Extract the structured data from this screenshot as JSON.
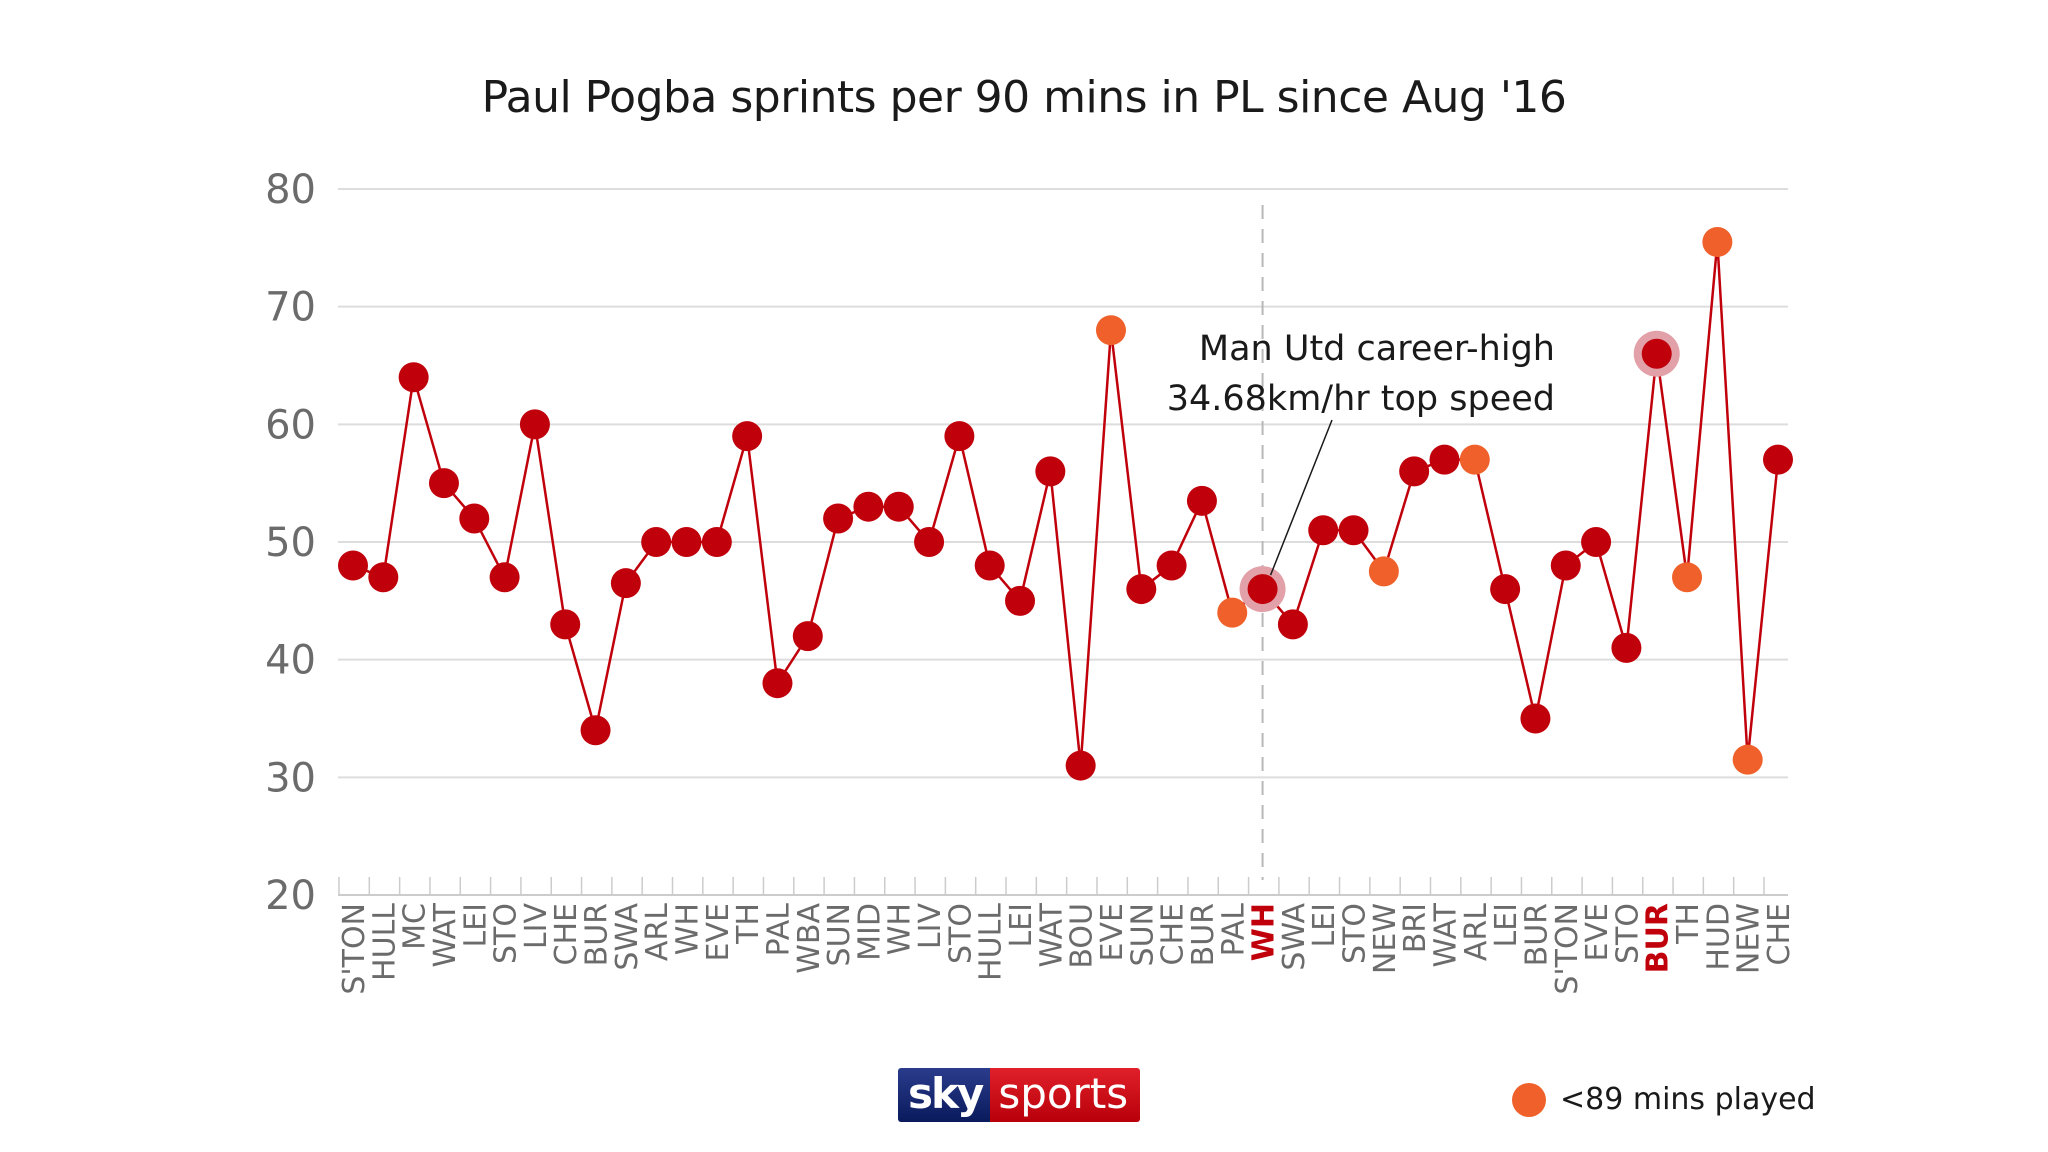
{
  "title": "Paul Pogba sprints per 90 mins in PL since Aug '16",
  "annotation": {
    "line1": "Man Utd career-high",
    "line2": "34.68km/hr top speed"
  },
  "legend": {
    "label": "<89 mins played"
  },
  "logo": {
    "sky": "sky",
    "sports": "sports"
  },
  "colors": {
    "full_match": "#c0000a",
    "partial_match": "#f0602a",
    "line": "#c0000a",
    "highlight_halo": "#e2a0a8",
    "grid": "#dddddd",
    "axis_text": "#6b6b6b"
  },
  "chart_data": {
    "type": "line",
    "title": "Paul Pogba sprints per 90 mins in PL since Aug '16",
    "xlabel": "",
    "ylabel": "",
    "ylim": [
      20,
      80
    ],
    "yticks": [
      20,
      30,
      40,
      50,
      60,
      70,
      80
    ],
    "grid": true,
    "legend_position": "bottom-right",
    "categories": [
      "S'TON",
      "HULL",
      "MC",
      "WAT",
      "LEI",
      "STO",
      "LIV",
      "CHE",
      "BUR",
      "SWA",
      "ARL",
      "WH",
      "EVE",
      "TH",
      "PAL",
      "WBA",
      "SUN",
      "MID",
      "WH",
      "LIV",
      "STO",
      "HULL",
      "LEI",
      "WAT",
      "BOU",
      "EVE",
      "SUN",
      "CHE",
      "BUR",
      "PAL",
      "WH",
      "SWA",
      "LEI",
      "STO",
      "NEW",
      "BRI",
      "WAT",
      "ARL",
      "LEI",
      "BUR",
      "S'TON",
      "EVE",
      "STO",
      "BUR",
      "TH",
      "HUD",
      "NEW",
      "CHE"
    ],
    "series": [
      {
        "name": "Sprints per 90 mins",
        "values": [
          48,
          47,
          64,
          55,
          52,
          47,
          60,
          43,
          34,
          46.5,
          50,
          50,
          50,
          59,
          38,
          42,
          52,
          53,
          53,
          50,
          59,
          48,
          45,
          56,
          31,
          68,
          46,
          48,
          53.5,
          44,
          46,
          43,
          51,
          51,
          47.5,
          56,
          57,
          57,
          46,
          35,
          48,
          50,
          41,
          66,
          47,
          75.5,
          31.5,
          57
        ],
        "under_89_mins": [
          false,
          false,
          false,
          false,
          false,
          false,
          false,
          false,
          false,
          false,
          false,
          false,
          false,
          false,
          false,
          false,
          false,
          false,
          false,
          false,
          false,
          false,
          false,
          false,
          false,
          true,
          false,
          false,
          false,
          true,
          false,
          false,
          false,
          false,
          true,
          false,
          false,
          true,
          false,
          false,
          false,
          false,
          false,
          false,
          true,
          true,
          true,
          false
        ]
      }
    ],
    "highlighted_indices": [
      30,
      43
    ],
    "highlighted_labels": [
      "WH",
      "BUR"
    ],
    "season_divider_index": 30,
    "annotations": [
      {
        "text": "Man Utd career-high 34.68km/hr top speed",
        "points_to_index": 30
      }
    ],
    "legend": [
      {
        "label": "<89 mins played",
        "color": "#f0602a"
      }
    ]
  }
}
